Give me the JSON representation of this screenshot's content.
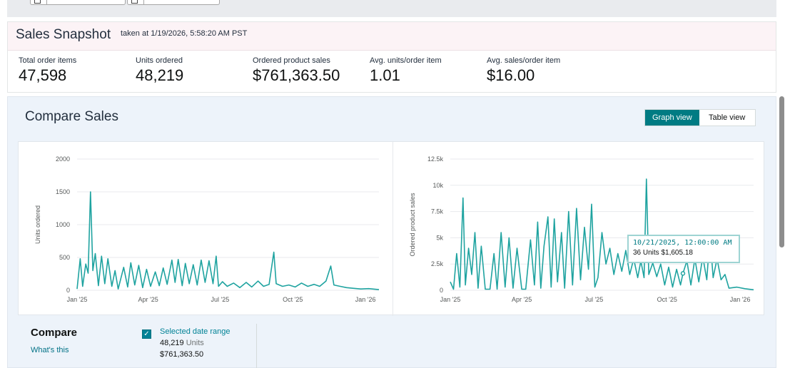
{
  "snapshot": {
    "title": "Sales Snapshot",
    "taken": "taken at 1/19/2026, 5:58:20 AM PST",
    "metrics": [
      {
        "label": "Total order items",
        "value": "47,598"
      },
      {
        "label": "Units ordered",
        "value": "48,219"
      },
      {
        "label": "Ordered product sales",
        "value": "$761,363.50"
      },
      {
        "label": "Avg. units/order item",
        "value": "1.01"
      },
      {
        "label": "Avg. sales/order item",
        "value": "$16.00"
      }
    ]
  },
  "compare": {
    "title": "Compare Sales",
    "graph_view": "Graph view",
    "table_view": "Table view",
    "label": "Compare",
    "whats_this": "What's this",
    "selected_range": "Selected date range",
    "range_units_value": "48,219",
    "range_units_word": "Units",
    "range_sales": "$761,363.50",
    "checkbox_glyph": "✓"
  },
  "tooltip": {
    "date": "10/21/2025, 12:00:00 AM",
    "detail": "36 Units $1,605.18"
  },
  "colors": {
    "accent": "#007b83",
    "line": "#1fa3a0",
    "link": "#007185"
  },
  "chart_data": [
    {
      "type": "line",
      "ylabel": "Units ordered",
      "ylim": [
        0,
        2000
      ],
      "y_ticks": [
        "0",
        "500",
        "1000",
        "1500",
        "2000"
      ],
      "x_ticks": [
        "Jan '25",
        "Apr '25",
        "Jul '25",
        "Oct '25",
        "Jan '26"
      ],
      "x_range": [
        "2025-01-01",
        "2026-01-18"
      ],
      "series": [
        {
          "values": [
            [
              "2025-01-01",
              20
            ],
            [
              "2025-01-05",
              480
            ],
            [
              "2025-01-08",
              60
            ],
            [
              "2025-01-12",
              400
            ],
            [
              "2025-01-15",
              260
            ],
            [
              "2025-01-18",
              1500
            ],
            [
              "2025-01-21",
              300
            ],
            [
              "2025-01-24",
              560
            ],
            [
              "2025-01-28",
              70
            ],
            [
              "2025-02-01",
              520
            ],
            [
              "2025-02-05",
              100
            ],
            [
              "2025-02-09",
              480
            ],
            [
              "2025-02-14",
              60
            ],
            [
              "2025-02-18",
              300
            ],
            [
              "2025-02-22",
              20
            ],
            [
              "2025-03-01",
              350
            ],
            [
              "2025-03-06",
              50
            ],
            [
              "2025-03-10",
              420
            ],
            [
              "2025-03-15",
              80
            ],
            [
              "2025-03-20",
              380
            ],
            [
              "2025-03-25",
              40
            ],
            [
              "2025-03-30",
              320
            ],
            [
              "2025-04-04",
              60
            ],
            [
              "2025-04-10",
              280
            ],
            [
              "2025-04-15",
              70
            ],
            [
              "2025-04-20",
              340
            ],
            [
              "2025-04-25",
              90
            ],
            [
              "2025-05-01",
              460
            ],
            [
              "2025-05-05",
              120
            ],
            [
              "2025-05-09",
              470
            ],
            [
              "2025-05-14",
              70
            ],
            [
              "2025-05-18",
              410
            ],
            [
              "2025-05-23",
              100
            ],
            [
              "2025-05-28",
              390
            ],
            [
              "2025-06-02",
              80
            ],
            [
              "2025-06-07",
              460
            ],
            [
              "2025-06-12",
              120
            ],
            [
              "2025-06-17",
              450
            ],
            [
              "2025-06-22",
              100
            ],
            [
              "2025-06-26",
              520
            ],
            [
              "2025-06-29",
              60
            ],
            [
              "2025-07-04",
              130
            ],
            [
              "2025-07-10",
              60
            ],
            [
              "2025-07-18",
              110
            ],
            [
              "2025-07-26",
              40
            ],
            [
              "2025-08-03",
              120
            ],
            [
              "2025-08-10",
              50
            ],
            [
              "2025-08-18",
              140
            ],
            [
              "2025-08-25",
              60
            ],
            [
              "2025-09-01",
              90
            ],
            [
              "2025-09-07",
              580
            ],
            [
              "2025-09-10",
              100
            ],
            [
              "2025-09-18",
              60
            ],
            [
              "2025-09-26",
              80
            ],
            [
              "2025-10-04",
              50
            ],
            [
              "2025-10-12",
              110
            ],
            [
              "2025-10-20",
              60
            ],
            [
              "2025-10-28",
              90
            ],
            [
              "2025-11-04",
              60
            ],
            [
              "2025-11-12",
              140
            ],
            [
              "2025-11-18",
              370
            ],
            [
              "2025-11-22",
              80
            ],
            [
              "2025-11-30",
              60
            ],
            [
              "2025-12-08",
              40
            ],
            [
              "2025-12-16",
              30
            ],
            [
              "2025-12-26",
              20
            ],
            [
              "2026-01-05",
              25
            ],
            [
              "2026-01-18",
              10
            ]
          ]
        }
      ]
    },
    {
      "type": "line",
      "ylabel": "Ordered product sales",
      "ylim": [
        0,
        12500
      ],
      "y_ticks": [
        "0",
        "2.5k",
        "5k",
        "7.5k",
        "10k",
        "12.5k"
      ],
      "x_ticks": [
        "Jan '25",
        "Apr '25",
        "Jul '25",
        "Oct '25",
        "Jan '26"
      ],
      "x_range": [
        "2025-01-01",
        "2026-01-18"
      ],
      "series": [
        {
          "values": [
            [
              "2025-01-01",
              800
            ],
            [
              "2025-01-05",
              100
            ],
            [
              "2025-01-09",
              3500
            ],
            [
              "2025-01-13",
              300
            ],
            [
              "2025-01-17",
              8800
            ],
            [
              "2025-01-20",
              500
            ],
            [
              "2025-01-24",
              4000
            ],
            [
              "2025-01-28",
              1500
            ],
            [
              "2025-02-01",
              5500
            ],
            [
              "2025-02-05",
              200
            ],
            [
              "2025-02-09",
              4200
            ],
            [
              "2025-02-14",
              100
            ],
            [
              "2025-02-20",
              100
            ],
            [
              "2025-02-25",
              3500
            ],
            [
              "2025-03-01",
              100
            ],
            [
              "2025-03-06",
              5500
            ],
            [
              "2025-03-11",
              300
            ],
            [
              "2025-03-16",
              5000
            ],
            [
              "2025-03-21",
              200
            ],
            [
              "2025-03-26",
              4000
            ],
            [
              "2025-04-01",
              100
            ],
            [
              "2025-04-06",
              100
            ],
            [
              "2025-04-12",
              4800
            ],
            [
              "2025-04-17",
              500
            ],
            [
              "2025-04-21",
              6500
            ],
            [
              "2025-04-25",
              200
            ],
            [
              "2025-04-29",
              4200
            ],
            [
              "2025-05-04",
              7000
            ],
            [
              "2025-05-08",
              300
            ],
            [
              "2025-05-12",
              6800
            ],
            [
              "2025-05-16",
              800
            ],
            [
              "2025-05-21",
              5500
            ],
            [
              "2025-05-25",
              200
            ],
            [
              "2025-05-30",
              7500
            ],
            [
              "2025-06-04",
              500
            ],
            [
              "2025-06-09",
              7800
            ],
            [
              "2025-06-14",
              1000
            ],
            [
              "2025-06-19",
              6000
            ],
            [
              "2025-06-24",
              2000
            ],
            [
              "2025-06-28",
              8200
            ],
            [
              "2025-07-02",
              300
            ],
            [
              "2025-07-06",
              1200
            ],
            [
              "2025-07-11",
              5500
            ],
            [
              "2025-07-16",
              2500
            ],
            [
              "2025-07-21",
              4000
            ],
            [
              "2025-07-26",
              1500
            ],
            [
              "2025-07-31",
              3500
            ],
            [
              "2025-08-05",
              1800
            ],
            [
              "2025-08-10",
              3800
            ],
            [
              "2025-08-15",
              1500
            ],
            [
              "2025-08-20",
              3000
            ],
            [
              "2025-08-25",
              1200
            ],
            [
              "2025-08-29",
              2800
            ],
            [
              "2025-09-02",
              1200
            ],
            [
              "2025-09-05",
              10600
            ],
            [
              "2025-09-08",
              1500
            ],
            [
              "2025-09-13",
              2600
            ],
            [
              "2025-09-18",
              1300
            ],
            [
              "2025-09-23",
              2500
            ],
            [
              "2025-09-28",
              500
            ],
            [
              "2025-10-03",
              2200
            ],
            [
              "2025-10-08",
              300
            ],
            [
              "2025-10-13",
              2000
            ],
            [
              "2025-10-18",
              500
            ],
            [
              "2025-10-21",
              1605
            ],
            [
              "2025-10-26",
              2800
            ],
            [
              "2025-10-31",
              500
            ],
            [
              "2025-11-05",
              3000
            ],
            [
              "2025-11-10",
              800
            ],
            [
              "2025-11-15",
              3200
            ],
            [
              "2025-11-20",
              1000
            ],
            [
              "2025-11-24",
              5200
            ],
            [
              "2025-11-28",
              1200
            ],
            [
              "2025-12-03",
              3000
            ],
            [
              "2025-12-08",
              1000
            ],
            [
              "2025-12-13",
              1500
            ],
            [
              "2025-12-18",
              200
            ],
            [
              "2025-12-28",
              300
            ],
            [
              "2026-01-07",
              150
            ],
            [
              "2026-01-18",
              50
            ]
          ]
        }
      ]
    }
  ]
}
